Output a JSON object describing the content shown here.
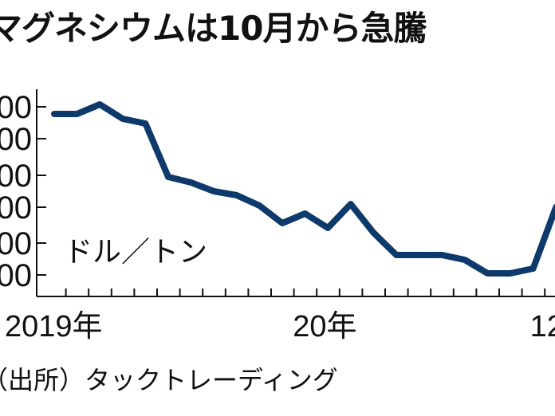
{
  "title": "マグネシウムは10月から急騰",
  "source": "（出所）タックトレーディング",
  "chart_data": {
    "type": "line",
    "title": "マグネシウムは10月から急騰",
    "unit_label": "ドル／トン",
    "ytick_labels": [
      "00",
      "00",
      "00",
      "00",
      "00",
      "00"
    ],
    "ytick_values": [
      211,
      171,
      125,
      85,
      40,
      0
    ],
    "xtick_labels": [
      "2019年",
      "20年",
      "12"
    ],
    "xtick_indices": [
      0,
      12,
      21
    ],
    "series": [
      {
        "color": "#0d3a6b",
        "values": [
          202,
          202,
          214,
          196,
          190,
          123,
          116,
          105,
          100,
          87,
          65,
          77,
          59,
          89,
          53,
          25,
          25,
          25,
          19,
          2,
          2,
          8,
          85,
          115
        ]
      }
    ],
    "grid": false
  }
}
